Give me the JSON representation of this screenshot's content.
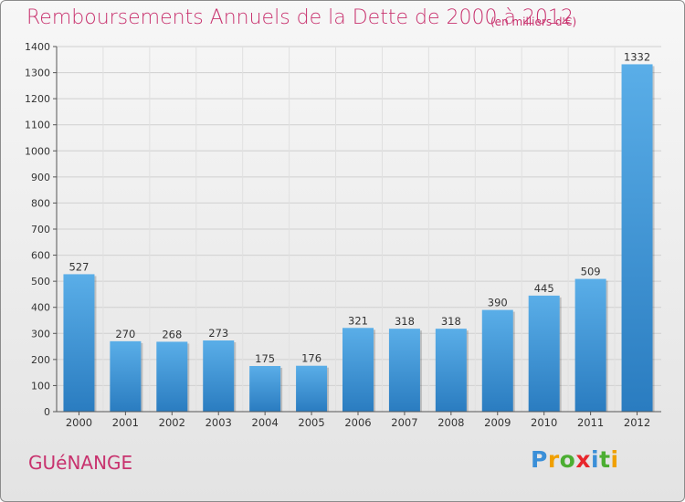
{
  "header": {
    "title": "Remboursements Annuels de la Dette de 2000 à 2012",
    "unit_note": "(en milliers d'€)"
  },
  "footer": {
    "town": "GUéNANGE",
    "logo_letters": [
      {
        "char": "P",
        "color": "#3a8fd8"
      },
      {
        "char": "r",
        "color": "#f0a000"
      },
      {
        "char": "o",
        "color": "#4cae32"
      },
      {
        "char": "x",
        "color": "#e8262c"
      },
      {
        "char": "i",
        "color": "#3a8fd8"
      },
      {
        "char": "t",
        "color": "#4cae32"
      },
      {
        "char": "i",
        "color": "#f0a000"
      }
    ]
  },
  "colors": {
    "accent": "#c8326e",
    "bar_top": "#5aaee8",
    "bar_bottom": "#2a7cc0",
    "grid": "#d0d0d0",
    "axis": "#555555"
  },
  "chart_data": {
    "type": "bar",
    "title": "Remboursements Annuels de la Dette de 2000 à 2012",
    "subtitle": "(en milliers d'€)",
    "categories": [
      "2000",
      "2001",
      "2002",
      "2003",
      "2004",
      "2005",
      "2006",
      "2007",
      "2008",
      "2009",
      "2010",
      "2011",
      "2012"
    ],
    "values": [
      527,
      270,
      268,
      273,
      175,
      176,
      321,
      318,
      318,
      390,
      445,
      509,
      1332
    ],
    "ylim": [
      0,
      1400
    ],
    "yticks": [
      0,
      100,
      200,
      300,
      400,
      500,
      600,
      700,
      800,
      900,
      1000,
      1100,
      1200,
      1300,
      1400
    ],
    "grid": true,
    "legend": "none"
  }
}
